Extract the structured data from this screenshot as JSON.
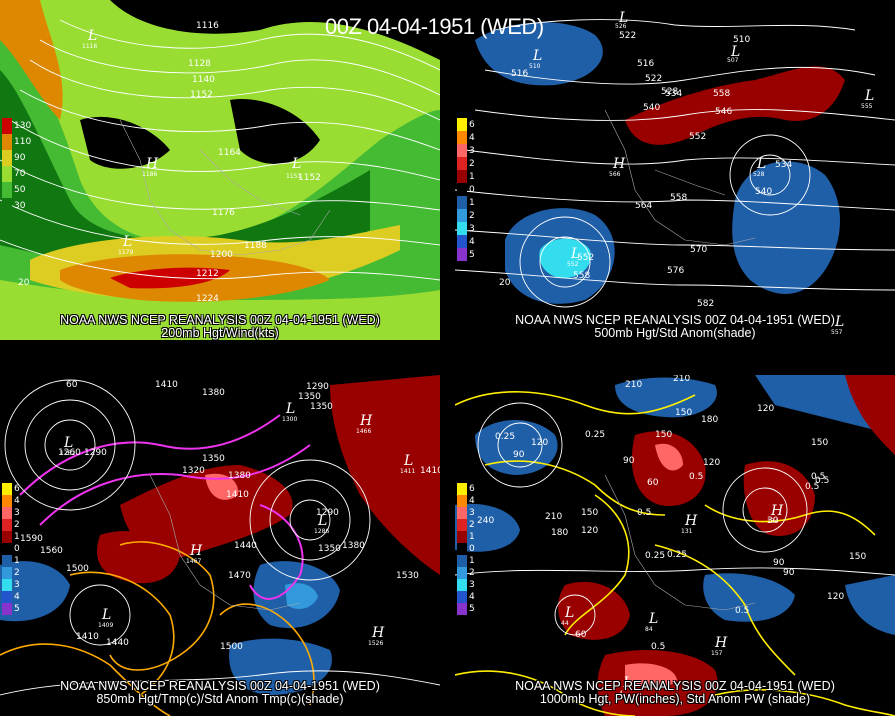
{
  "page_title": "00Z 04-04-1951 (WED)",
  "colors": {
    "background": "#000000",
    "wind_light_green": "#99dd33",
    "wind_green": "#22aa22",
    "wind_dark_green": "#117711",
    "wind_orange": "#dd8800",
    "wind_yellow": "#ddcc22",
    "wind_red": "#cc0000",
    "anom_dark_red": "#990000",
    "anom_pink": "#ff6666",
    "anom_blue": "#1f5fa8",
    "anom_cyan": "#33ddee",
    "pw_yellow": "#ffee00",
    "temp_magenta": "#ee33ee",
    "temp_orange": "#ffaa00"
  },
  "panels": [
    {
      "id": "wind200",
      "caption_line1": "NOAA NWS NCEP REANALYSIS 00Z 04-04-1951 (WED)",
      "caption_line2": "200mb Hgt/Wind(kts)",
      "legend": [
        {
          "label": "130",
          "color": "#cc0000"
        },
        {
          "label": "110",
          "color": "#dd8800"
        },
        {
          "label": "90",
          "color": "#ddcc22"
        },
        {
          "label": "70",
          "color": "#99dd33"
        },
        {
          "label": "50",
          "color": "#44bb33"
        },
        {
          "label": "30",
          "color": "#117711"
        }
      ],
      "contour_labels": [
        "1116",
        "1128",
        "1140",
        "1152",
        "1164",
        "1152",
        "1176",
        "1188",
        "1200",
        "1212",
        "1224",
        "20"
      ],
      "centers": [
        {
          "letter": "L",
          "value": "1116"
        },
        {
          "letter": "H",
          "value": "1186"
        },
        {
          "letter": "L",
          "value": "1151"
        },
        {
          "letter": "L",
          "value": "1179"
        }
      ]
    },
    {
      "id": "hgt500",
      "caption_line1": "NOAA NWS NCEP REANALYSIS 00Z 04-04-1951 (WED)",
      "caption_line2": "500mb Hgt/Std Anom(shade)",
      "legend": [
        {
          "label": "6",
          "color": "#ffee00"
        },
        {
          "label": "4",
          "color": "#ff8800"
        },
        {
          "label": "3",
          "color": "#ff6666"
        },
        {
          "label": "2",
          "color": "#dd2222"
        },
        {
          "label": "1",
          "color": "#990000"
        },
        {
          "label": "0",
          "color": "#000000"
        },
        {
          "label": "1",
          "color": "#1f5fa8"
        },
        {
          "label": "2",
          "color": "#3399dd"
        },
        {
          "label": "3",
          "color": "#33ddee"
        },
        {
          "label": "4",
          "color": "#2255cc"
        },
        {
          "label": "5",
          "color": "#8833cc"
        }
      ],
      "contour_labels": [
        "522",
        "516",
        "516",
        "522",
        "528",
        "534",
        "540",
        "546",
        "552",
        "540",
        "534",
        "564",
        "558",
        "570",
        "576",
        "582",
        "552",
        "558",
        "510",
        "558",
        "20"
      ],
      "centers": [
        {
          "letter": "L",
          "value": "510"
        },
        {
          "letter": "L",
          "value": "526"
        },
        {
          "letter": "L",
          "value": "507"
        },
        {
          "letter": "L",
          "value": "555"
        },
        {
          "letter": "H",
          "value": "566"
        },
        {
          "letter": "L",
          "value": "528"
        },
        {
          "letter": "L",
          "value": "552"
        },
        {
          "letter": "L",
          "value": "557"
        }
      ]
    },
    {
      "id": "temp850",
      "caption_line1": "NOAA NWS NCEP REANALYSIS 00Z 04-04-1951 (WED)",
      "caption_line2": "850mb Hgt/Tmp(c)/Std Anom Tmp(c)(shade)",
      "legend": [
        {
          "label": "6",
          "color": "#ffee00"
        },
        {
          "label": "4",
          "color": "#ff8800"
        },
        {
          "label": "3",
          "color": "#ff6666"
        },
        {
          "label": "2",
          "color": "#dd2222"
        },
        {
          "label": "1",
          "color": "#990000"
        },
        {
          "label": "0",
          "color": "#000000"
        },
        {
          "label": "1",
          "color": "#1f5fa8"
        },
        {
          "label": "2",
          "color": "#3399dd"
        },
        {
          "label": "3",
          "color": "#33ddee"
        },
        {
          "label": "4",
          "color": "#2255cc"
        },
        {
          "label": "5",
          "color": "#8833cc"
        }
      ],
      "contour_labels": [
        "60",
        "1290",
        "1410",
        "1380",
        "1350",
        "1350",
        "1320",
        "1380",
        "1350",
        "1410",
        "1410",
        "1290",
        "1260",
        "1290",
        "1440",
        "1350",
        "1380",
        "1470",
        "1560",
        "1500",
        "1530",
        "1500",
        "1410",
        "1440",
        "1590"
      ],
      "centers": [
        {
          "letter": "L",
          "value": "1262"
        },
        {
          "letter": "H",
          "value": "1466"
        },
        {
          "letter": "L",
          "value": "1411"
        },
        {
          "letter": "L",
          "value": "1300"
        },
        {
          "letter": "H",
          "value": "1467"
        },
        {
          "letter": "L",
          "value": "1286"
        },
        {
          "letter": "L",
          "value": "1409"
        },
        {
          "letter": "H",
          "value": "1526"
        }
      ]
    },
    {
      "id": "pw1000",
      "caption_line1": "NOAA NWS NCEP REANALYSIS 00Z 04-04-1951 (WED)",
      "caption_line2": "1000mb Hgt, PW(inches), Std Anom PW (shade)",
      "legend": [
        {
          "label": "6",
          "color": "#ffee00"
        },
        {
          "label": "4",
          "color": "#ff8800"
        },
        {
          "label": "3",
          "color": "#ff6666"
        },
        {
          "label": "2",
          "color": "#dd2222"
        },
        {
          "label": "1",
          "color": "#990000"
        },
        {
          "label": "0",
          "color": "#000000"
        },
        {
          "label": "1",
          "color": "#1f5fa8"
        },
        {
          "label": "2",
          "color": "#3399dd"
        },
        {
          "label": "3",
          "color": "#33ddee"
        },
        {
          "label": "4",
          "color": "#2255cc"
        },
        {
          "label": "5",
          "color": "#8833cc"
        }
      ],
      "contour_labels": [
        "210",
        "210",
        "150",
        "180",
        "0.25",
        "120",
        "90",
        "0.25",
        "150",
        "120",
        "0.5",
        "90",
        "60",
        "120",
        "0.5",
        "0.5",
        "0.25",
        "210",
        "180",
        "120",
        "150",
        "0.5",
        "0.25",
        "90",
        "150",
        "120",
        "0.5",
        "0.5",
        "60",
        "0.5",
        "30",
        "90",
        "150",
        "240"
      ],
      "centers": [
        {
          "letter": "L",
          "value": "44"
        },
        {
          "letter": "H",
          "value": "131"
        },
        {
          "letter": "L",
          "value": "84"
        },
        {
          "letter": "H",
          "value": "134"
        },
        {
          "letter": "L",
          "value": "4"
        },
        {
          "letter": "H",
          "value": "157"
        }
      ]
    }
  ]
}
